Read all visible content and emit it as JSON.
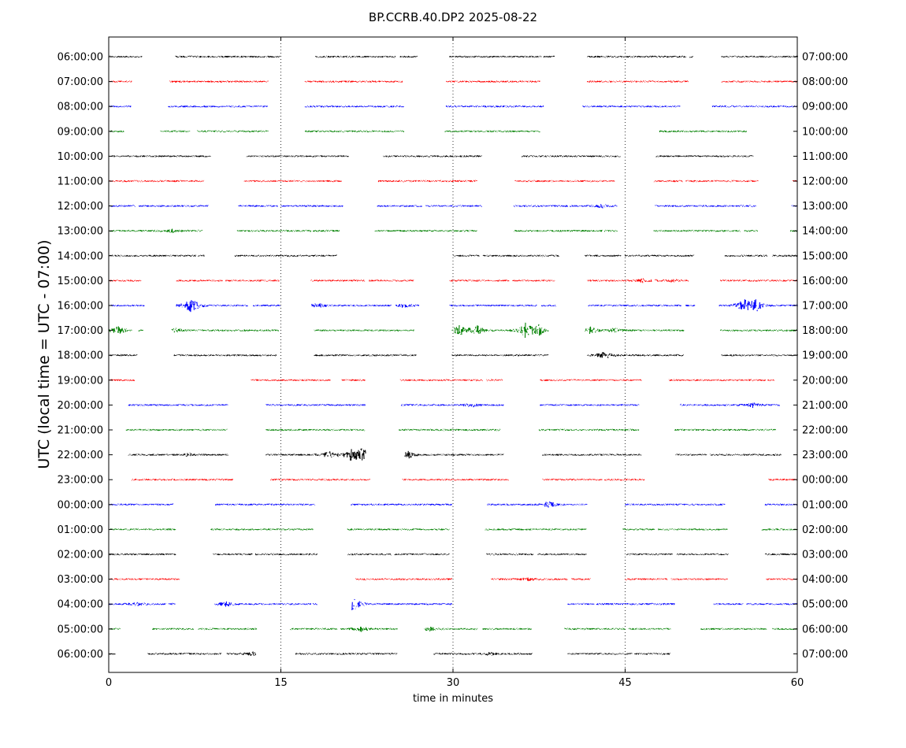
{
  "chart_data": {
    "type": "line",
    "title": "BP.CCRB.40.DP2 2025-08-22",
    "xlabel": "time in minutes",
    "ylabel": "UTC (local time = UTC - 07:00)",
    "xlim": [
      0,
      60
    ],
    "x_ticks": [
      0,
      15,
      30,
      45,
      60
    ],
    "vertical_grid_minutes": [
      15,
      30,
      45
    ],
    "grid": "dotted vertical lines at 15, 30, 45",
    "color_cycle": [
      "#000000",
      "#ff0000",
      "#0000ff",
      "#008000"
    ],
    "rows": [
      {
        "left": "06:00:00",
        "right": "07:00:00",
        "segments": [
          [
            0.1,
            2.9
          ],
          [
            5.8,
            13.6
          ],
          [
            13.7,
            14.9
          ],
          [
            18.0,
            25.0
          ],
          [
            25.4,
            26.9
          ],
          [
            29.7,
            37.7
          ],
          [
            37.9,
            38.8
          ],
          [
            41.7,
            50.3
          ],
          [
            50.6,
            50.9
          ],
          [
            53.4,
            60.0
          ]
        ],
        "events": []
      },
      {
        "left": "07:00:00",
        "right": "08:00:00",
        "segments": [
          [
            0.1,
            2.0
          ],
          [
            5.3,
            13.9
          ],
          [
            17.1,
            25.6
          ],
          [
            29.4,
            37.6
          ],
          [
            41.7,
            50.5
          ],
          [
            53.4,
            60.0
          ]
        ],
        "events": []
      },
      {
        "left": "08:00:00",
        "right": "09:00:00",
        "segments": [
          [
            0.1,
            1.9
          ],
          [
            5.2,
            13.8
          ],
          [
            17.1,
            25.7
          ],
          [
            29.4,
            37.9
          ],
          [
            41.3,
            49.8
          ],
          [
            52.6,
            60.0
          ]
        ],
        "events": []
      },
      {
        "left": "09:00:00",
        "right": "10:00:00",
        "segments": [
          [
            0.1,
            1.3
          ],
          [
            4.5,
            7.1
          ],
          [
            7.7,
            13.9
          ],
          [
            17.1,
            25.7
          ],
          [
            29.3,
            37.6
          ],
          [
            48.0,
            55.6
          ]
        ],
        "events": []
      },
      {
        "left": "10:00:00",
        "right": "11:00:00",
        "segments": [
          [
            0.2,
            8.9
          ],
          [
            12.0,
            20.9
          ],
          [
            23.9,
            32.5
          ],
          [
            36.0,
            44.6
          ],
          [
            47.7,
            56.2
          ]
        ],
        "events": []
      },
      {
        "left": "11:00:00",
        "right": "12:00:00",
        "segments": [
          [
            0.1,
            8.3
          ],
          [
            11.8,
            20.3
          ],
          [
            23.5,
            32.1
          ],
          [
            35.4,
            44.1
          ],
          [
            47.5,
            50.0
          ],
          [
            50.3,
            56.6
          ],
          [
            59.6,
            60.0
          ]
        ],
        "events": []
      },
      {
        "left": "12:00:00",
        "right": "13:00:00",
        "segments": [
          [
            0.1,
            2.3
          ],
          [
            2.6,
            8.7
          ],
          [
            11.3,
            14.7
          ],
          [
            15.0,
            20.4
          ],
          [
            23.4,
            27.3
          ],
          [
            27.6,
            32.5
          ],
          [
            35.3,
            40.0
          ],
          [
            40.2,
            44.3
          ],
          [
            47.6,
            56.4
          ],
          [
            59.5,
            60.0
          ]
        ],
        "events": [
          {
            "t": 43.0,
            "amp": 0.4
          }
        ]
      },
      {
        "left": "13:00:00",
        "right": "14:00:00",
        "segments": [
          [
            0.1,
            8.2
          ],
          [
            11.2,
            17.6
          ],
          [
            17.8,
            20.1
          ],
          [
            23.2,
            32.1
          ],
          [
            35.3,
            43.0
          ],
          [
            43.2,
            44.3
          ],
          [
            47.5,
            55.0
          ],
          [
            55.4,
            56.5
          ],
          [
            59.4,
            60.0
          ]
        ],
        "events": [
          {
            "t": 5.6,
            "amp": 0.3
          }
        ]
      },
      {
        "left": "14:00:00",
        "right": "15:00:00",
        "segments": [
          [
            0.1,
            7.6
          ],
          [
            7.8,
            8.3
          ],
          [
            11.0,
            19.9
          ],
          [
            30.0,
            32.3
          ],
          [
            32.6,
            39.2
          ],
          [
            41.5,
            44.6
          ],
          [
            45.0,
            51.0
          ],
          [
            53.7,
            57.4
          ],
          [
            57.8,
            60.0
          ]
        ],
        "events": []
      },
      {
        "left": "15:00:00",
        "right": "16:00:00",
        "segments": [
          [
            0.1,
            2.8
          ],
          [
            5.9,
            9.9
          ],
          [
            10.2,
            14.8
          ],
          [
            17.6,
            22.3
          ],
          [
            22.7,
            26.6
          ],
          [
            29.7,
            34.9
          ],
          [
            35.2,
            38.9
          ],
          [
            41.7,
            47.3
          ],
          [
            47.6,
            50.5
          ],
          [
            53.3,
            60.0
          ]
        ],
        "events": [
          {
            "t": 46.6,
            "amp": 0.4
          },
          {
            "t": 49.0,
            "amp": 0.3
          }
        ]
      },
      {
        "left": "16:00:00",
        "right": "17:00:00",
        "segments": [
          [
            0.1,
            3.1
          ],
          [
            5.9,
            12.1
          ],
          [
            12.6,
            15.0
          ],
          [
            17.7,
            24.6
          ],
          [
            25.0,
            27.0
          ],
          [
            29.7,
            37.3
          ],
          [
            37.7,
            39.0
          ],
          [
            41.8,
            49.9
          ],
          [
            50.3,
            51.1
          ],
          [
            53.2,
            60.0
          ]
        ],
        "events": [
          {
            "t": 7.2,
            "amp": 1.7
          },
          {
            "t": 18.2,
            "amp": 0.5
          },
          {
            "t": 25.7,
            "amp": 0.4
          },
          {
            "t": 55.3,
            "amp": 1.3
          },
          {
            "t": 56.4,
            "amp": 1.2
          }
        ]
      },
      {
        "left": "17:00:00",
        "right": "18:00:00",
        "segments": [
          [
            0.0,
            2.0
          ],
          [
            2.6,
            3.0
          ],
          [
            5.5,
            14.8
          ],
          [
            17.9,
            26.6
          ],
          [
            29.9,
            38.3
          ],
          [
            41.5,
            50.1
          ],
          [
            53.3,
            60.0
          ]
        ],
        "events": [
          {
            "t": 0.8,
            "amp": 0.8
          },
          {
            "t": 5.7,
            "amp": 0.5
          },
          {
            "t": 30.6,
            "amp": 1.1
          },
          {
            "t": 32.1,
            "amp": 0.9
          },
          {
            "t": 36.3,
            "amp": 1.4
          },
          {
            "t": 37.4,
            "amp": 1.2
          },
          {
            "t": 42.0,
            "amp": 0.7
          },
          {
            "t": 44.0,
            "amp": 0.5
          }
        ]
      },
      {
        "left": "18:00:00",
        "right": "19:00:00",
        "segments": [
          [
            0.1,
            2.5
          ],
          [
            5.7,
            14.6
          ],
          [
            17.9,
            26.8
          ],
          [
            29.9,
            38.3
          ],
          [
            41.7,
            50.1
          ],
          [
            53.4,
            60.0
          ]
        ],
        "events": [
          {
            "t": 43.2,
            "amp": 0.8
          }
        ]
      },
      {
        "left": "19:00:00",
        "right": "20:00:00",
        "segments": [
          [
            0.0,
            2.2
          ],
          [
            12.4,
            19.3
          ],
          [
            20.3,
            22.3
          ],
          [
            25.4,
            32.6
          ],
          [
            32.9,
            34.3
          ],
          [
            37.6,
            46.4
          ],
          [
            48.8,
            57.2
          ],
          [
            57.4,
            58.0
          ]
        ],
        "events": []
      },
      {
        "left": "20:00:00",
        "right": "21:00:00",
        "segments": [
          [
            1.7,
            10.4
          ],
          [
            13.7,
            22.4
          ],
          [
            25.5,
            34.4
          ],
          [
            37.6,
            46.2
          ],
          [
            49.8,
            58.5
          ]
        ],
        "events": [
          {
            "t": 31.6,
            "amp": 0.4
          },
          {
            "t": 56.1,
            "amp": 0.5
          }
        ]
      },
      {
        "left": "21:00:00",
        "right": "22:00:00",
        "segments": [
          [
            1.5,
            10.3
          ],
          [
            13.7,
            22.3
          ],
          [
            25.3,
            34.1
          ],
          [
            37.5,
            46.2
          ],
          [
            49.3,
            58.1
          ]
        ],
        "events": []
      },
      {
        "left": "22:00:00",
        "right": "23:00:00",
        "segments": [
          [
            1.7,
            10.4
          ],
          [
            13.7,
            22.4
          ],
          [
            25.8,
            34.4
          ],
          [
            37.8,
            46.4
          ],
          [
            49.4,
            52.1
          ],
          [
            52.4,
            58.6
          ]
        ],
        "events": [
          {
            "t": 6.9,
            "amp": 0.3
          },
          {
            "t": 19.2,
            "amp": 0.7
          },
          {
            "t": 21.2,
            "amp": 1.3
          },
          {
            "t": 22.1,
            "amp": 1.3
          },
          {
            "t": 26.1,
            "amp": 0.7
          }
        ]
      },
      {
        "left": "23:00:00",
        "right": "00:00:00",
        "segments": [
          [
            2.0,
            10.8
          ],
          [
            14.1,
            22.8
          ],
          [
            25.6,
            34.8
          ],
          [
            37.8,
            43.0
          ],
          [
            43.2,
            46.7
          ],
          [
            57.5,
            60.0
          ]
        ],
        "events": []
      },
      {
        "left": "00:00:00",
        "right": "01:00:00",
        "segments": [
          [
            0.1,
            5.6
          ],
          [
            9.3,
            18.0
          ],
          [
            21.1,
            29.9
          ],
          [
            33.0,
            41.7
          ],
          [
            45.0,
            53.7
          ],
          [
            57.2,
            60.0
          ]
        ],
        "events": [
          {
            "t": 38.3,
            "amp": 0.7
          }
        ]
      },
      {
        "left": "01:00:00",
        "right": "02:00:00",
        "segments": [
          [
            0.1,
            5.8
          ],
          [
            8.9,
            17.8
          ],
          [
            20.8,
            29.7
          ],
          [
            32.8,
            41.6
          ],
          [
            44.8,
            47.6
          ],
          [
            47.9,
            53.9
          ],
          [
            56.9,
            60.0
          ]
        ],
        "events": []
      },
      {
        "left": "02:00:00",
        "right": "03:00:00",
        "segments": [
          [
            0.1,
            5.8
          ],
          [
            9.1,
            12.5
          ],
          [
            12.8,
            18.2
          ],
          [
            20.8,
            24.6
          ],
          [
            24.9,
            29.7
          ],
          [
            32.9,
            37.0
          ],
          [
            37.4,
            41.6
          ],
          [
            45.1,
            49.1
          ],
          [
            49.5,
            54.0
          ],
          [
            57.2,
            60.0
          ]
        ],
        "events": []
      },
      {
        "left": "03:00:00",
        "right": "04:00:00",
        "segments": [
          [
            0.1,
            6.2
          ],
          [
            21.5,
            29.9
          ],
          [
            33.3,
            40.0
          ],
          [
            40.3,
            42.0
          ],
          [
            45.0,
            48.7
          ],
          [
            49.0,
            53.9
          ],
          [
            57.3,
            60.0
          ]
        ],
        "events": [
          {
            "t": 36.5,
            "amp": 0.3
          }
        ]
      },
      {
        "left": "04:00:00",
        "right": "05:00:00",
        "segments": [
          [
            0.0,
            5.0
          ],
          [
            5.2,
            5.8
          ],
          [
            9.2,
            17.6
          ],
          [
            17.8,
            18.2
          ],
          [
            21.2,
            29.9
          ],
          [
            40.0,
            42.3
          ],
          [
            42.5,
            49.3
          ],
          [
            52.7,
            55.3
          ],
          [
            55.6,
            60.0
          ]
        ],
        "events": [
          {
            "t": 2.5,
            "amp": 0.4
          },
          {
            "t": 10.2,
            "amp": 0.5
          },
          {
            "t": 21.3,
            "amp": 1.5
          }
        ]
      },
      {
        "left": "05:00:00",
        "right": "06:00:00",
        "segments": [
          [
            0.0,
            1.0
          ],
          [
            3.8,
            7.4
          ],
          [
            7.8,
            12.9
          ],
          [
            15.8,
            19.9
          ],
          [
            20.2,
            25.2
          ],
          [
            27.5,
            32.1
          ],
          [
            32.6,
            36.8
          ],
          [
            39.7,
            45.0
          ],
          [
            45.3,
            49.0
          ],
          [
            51.6,
            57.3
          ],
          [
            57.8,
            60.0
          ]
        ],
        "events": [
          {
            "t": 22.0,
            "amp": 0.5
          },
          {
            "t": 28.0,
            "amp": 0.4
          }
        ]
      },
      {
        "left": "06:00:00",
        "right": "07:00:00",
        "segments": [
          [
            0.0,
            0.6
          ],
          [
            3.4,
            9.8
          ],
          [
            10.3,
            12.8
          ],
          [
            16.3,
            25.1
          ],
          [
            28.3,
            33.0
          ],
          [
            33.1,
            36.9
          ],
          [
            40.0,
            45.6
          ],
          [
            45.8,
            48.9
          ]
        ],
        "events": [
          {
            "t": 12.5,
            "amp": 0.4
          },
          {
            "t": 33.2,
            "amp": 0.3
          }
        ]
      }
    ]
  }
}
